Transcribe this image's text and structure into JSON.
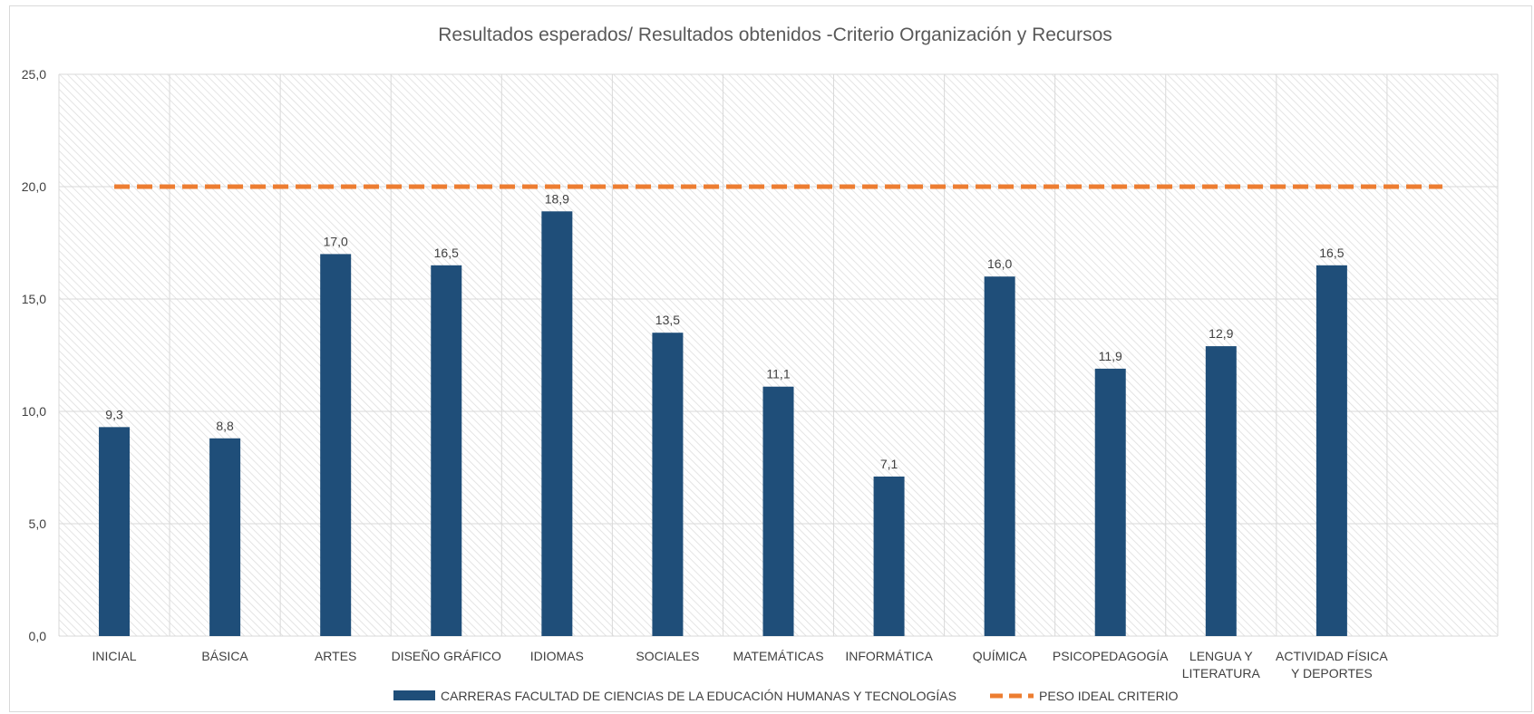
{
  "chart_data": {
    "type": "bar",
    "title": "Resultados esperados/ Resultados obtenidos -Criterio Organización y Recursos",
    "xlabel": "",
    "ylabel": "",
    "ylim": [
      0,
      25
    ],
    "yticks": [
      "0,0",
      "5,0",
      "10,0",
      "15,0",
      "20,0",
      "25,0"
    ],
    "grid": true,
    "legend_position": "bottom",
    "categories": [
      [
        "INICIAL"
      ],
      [
        "BÁSICA"
      ],
      [
        "ARTES"
      ],
      [
        "DISEÑO GRÁFICO"
      ],
      [
        "IDIOMAS"
      ],
      [
        "SOCIALES"
      ],
      [
        "MATEMÁTICAS"
      ],
      [
        "INFORMÁTICA"
      ],
      [
        "QUÍMICA"
      ],
      [
        "PSICOPEDAGOGÍA"
      ],
      [
        "LENGUA Y",
        "LITERATURA"
      ],
      [
        "ACTIVIDAD FÍSICA",
        "Y DEPORTES"
      ],
      [
        ""
      ]
    ],
    "series": [
      {
        "name": "CARRERAS FACULTAD DE CIENCIAS DE LA EDUCACIÓN HUMANAS Y TECNOLOGÍAS",
        "type": "bar",
        "color": "#1f4e79",
        "values": [
          9.3,
          8.8,
          17.0,
          16.5,
          18.9,
          13.5,
          11.1,
          7.1,
          16.0,
          11.9,
          12.9,
          16.5,
          null
        ],
        "labels": [
          "9,3",
          "8,8",
          "17,0",
          "16,5",
          "18,9",
          "13,5",
          "11,1",
          "7,1",
          "16,0",
          "11,9",
          "12,9",
          "16,5",
          ""
        ]
      },
      {
        "name": "PESO IDEAL CRITERIO",
        "type": "line",
        "style": "dashed",
        "color": "#ed7d31",
        "values": [
          20,
          20,
          20,
          20,
          20,
          20,
          20,
          20,
          20,
          20,
          20,
          20,
          20
        ]
      }
    ]
  }
}
